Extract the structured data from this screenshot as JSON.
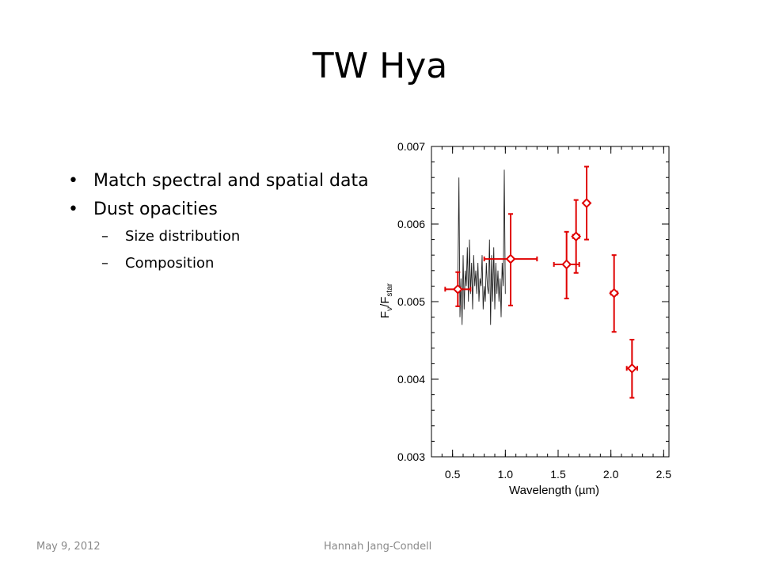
{
  "slide": {
    "title": "TW Hya",
    "bullets": [
      {
        "text": "Match spectral and spatial data"
      },
      {
        "text": "Dust opacities"
      }
    ],
    "sub_bullets": [
      {
        "text": "Size distribution"
      },
      {
        "text": "Composition"
      }
    ],
    "bullet_mark": "•",
    "sub_mark": "–",
    "footer": {
      "date": "May 9, 2012",
      "author": "Hannah Jang-Condell"
    }
  },
  "chart_data": {
    "type": "scatter",
    "title": "",
    "xlabel": "Wavelength (µm)",
    "ylabel_main": "F",
    "ylabel_sub1": "ν",
    "ylabel_div": "/F",
    "ylabel_sub2": "star",
    "xlim": [
      0.3,
      2.55
    ],
    "ylim": [
      0.003,
      0.007
    ],
    "x_ticks": [
      {
        "value": 0.5,
        "label": "0.5"
      },
      {
        "value": 1.0,
        "label": "1.0"
      },
      {
        "value": 1.5,
        "label": "1.5"
      },
      {
        "value": 2.0,
        "label": "2.0"
      },
      {
        "value": 2.5,
        "label": "2.5"
      }
    ],
    "y_ticks": [
      {
        "value": 0.003,
        "label": "0.003"
      },
      {
        "value": 0.004,
        "label": "0.004"
      },
      {
        "value": 0.005,
        "label": "0.005"
      },
      {
        "value": 0.006,
        "label": "0.006"
      },
      {
        "value": 0.007,
        "label": "0.007"
      }
    ],
    "grid": false,
    "series": [
      {
        "type": "line",
        "color": "#222222",
        "x": [
          0.55,
          0.56,
          0.57,
          0.58,
          0.59,
          0.6,
          0.61,
          0.62,
          0.63,
          0.64,
          0.65,
          0.66,
          0.67,
          0.68,
          0.69,
          0.7,
          0.71,
          0.72,
          0.73,
          0.74,
          0.75,
          0.76,
          0.77,
          0.78,
          0.79,
          0.8,
          0.81,
          0.82,
          0.83,
          0.84,
          0.85,
          0.86,
          0.87,
          0.88,
          0.89,
          0.9,
          0.91,
          0.92,
          0.93,
          0.94,
          0.95,
          0.96,
          0.97,
          0.98,
          0.99,
          1.0
        ],
        "y": [
          0.0052,
          0.0066,
          0.0048,
          0.0053,
          0.0047,
          0.0056,
          0.0049,
          0.0054,
          0.0052,
          0.0057,
          0.005,
          0.0058,
          0.0051,
          0.0055,
          0.0049,
          0.0056,
          0.0052,
          0.0054,
          0.0051,
          0.0055,
          0.005,
          0.0053,
          0.0052,
          0.0056,
          0.0049,
          0.0052,
          0.005,
          0.0055,
          0.0052,
          0.0051,
          0.0058,
          0.0047,
          0.0056,
          0.005,
          0.0057,
          0.0049,
          0.0055,
          0.0051,
          0.0054,
          0.005,
          0.0053,
          0.0048,
          0.0055,
          0.0052,
          0.0067,
          0.0051
        ]
      },
      {
        "type": "errorbar",
        "color": "#e00000",
        "marker": "diamond",
        "points": [
          {
            "x": 0.55,
            "y": 0.00516,
            "xerr": 0.12,
            "yerr_lo": 0.00022,
            "yerr_hi": 0.00022
          },
          {
            "x": 1.05,
            "y": 0.00555,
            "xerr": 0.25,
            "yerr_lo": 0.0006,
            "yerr_hi": 0.00058
          },
          {
            "x": 1.58,
            "y": 0.00548,
            "xerr": 0.12,
            "yerr_lo": 0.00044,
            "yerr_hi": 0.00042
          },
          {
            "x": 1.67,
            "y": 0.00584,
            "xerr": 0.03,
            "yerr_lo": 0.00047,
            "yerr_hi": 0.00047
          },
          {
            "x": 1.77,
            "y": 0.00627,
            "xerr": 0.02,
            "yerr_lo": 0.00047,
            "yerr_hi": 0.00047
          },
          {
            "x": 2.03,
            "y": 0.00511,
            "xerr": 0.03,
            "yerr_lo": 0.0005,
            "yerr_hi": 0.00049
          },
          {
            "x": 2.2,
            "y": 0.00414,
            "xerr": 0.05,
            "yerr_lo": 0.00038,
            "yerr_hi": 0.00037
          }
        ]
      }
    ]
  }
}
